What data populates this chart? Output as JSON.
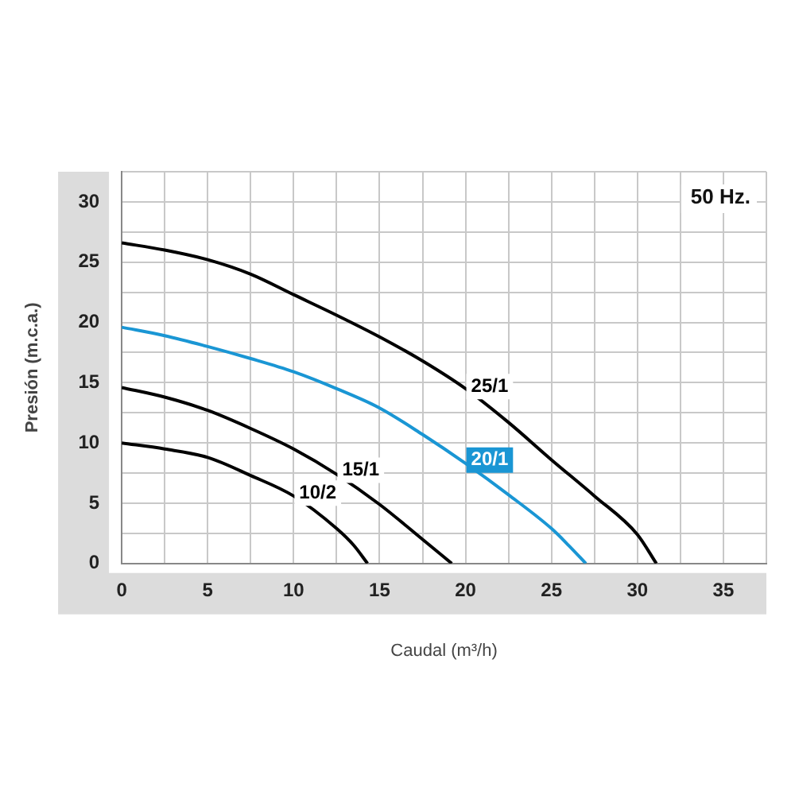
{
  "chart_data": {
    "type": "line",
    "title": "50 Hz.",
    "xlabel": "Caudal (m³/h)",
    "ylabel": "Presión (m.c.a.)",
    "series": [
      {
        "name": "25/1",
        "color": "#000000",
        "x": [
          0,
          2.5,
          5,
          7.5,
          10,
          12.5,
          15,
          17.5,
          20,
          22.5,
          25,
          27.5,
          30,
          31.1
        ],
        "values": [
          26.6,
          26,
          25.2,
          24,
          22.3,
          20.6,
          18.8,
          16.8,
          14.5,
          11.7,
          8.6,
          5.6,
          2.4,
          0
        ]
      },
      {
        "name": "20/1",
        "color": "#1a96d4",
        "x": [
          0,
          2.5,
          5,
          7.5,
          10,
          12.5,
          15,
          17.5,
          20,
          22.5,
          25,
          26,
          27
        ],
        "values": [
          19.6,
          18.9,
          18,
          17,
          15.9,
          14.5,
          12.9,
          10.7,
          8.3,
          5.7,
          2.9,
          1.5,
          0
        ]
      },
      {
        "name": "15/1",
        "color": "#000000",
        "x": [
          0,
          2.5,
          5,
          7.5,
          10,
          12.5,
          15,
          17.5,
          19.2
        ],
        "values": [
          14.6,
          13.8,
          12.7,
          11.2,
          9.5,
          7.4,
          4.9,
          2,
          0
        ]
      },
      {
        "name": "10/2",
        "color": "#000000",
        "x": [
          0,
          2.5,
          5,
          7.5,
          10,
          12.5,
          13.5,
          14.3
        ],
        "values": [
          10,
          9.5,
          8.8,
          7.3,
          5.6,
          2.9,
          1.5,
          0
        ]
      }
    ],
    "xlim": [
      0,
      37.5
    ],
    "ylim": [
      0,
      32.5
    ],
    "xticks": [
      0,
      {
        "value": 2.5,
        "label": null
      },
      5,
      {
        "value": 7.5,
        "label": null
      },
      10,
      {
        "value": 12.5,
        "label": null
      },
      15,
      {
        "value": 17.5,
        "label": null
      },
      20,
      {
        "value": 22.5,
        "label": null
      },
      25,
      {
        "value": 27.5,
        "label": null
      },
      30,
      {
        "value": 32.5,
        "label": null
      },
      35,
      {
        "value": 37.5,
        "label": null
      }
    ],
    "yticks": [
      0,
      {
        "value": 2.5,
        "label": null
      },
      5,
      {
        "value": 7.5,
        "label": null
      },
      10,
      {
        "value": 12.5,
        "label": null
      },
      15,
      {
        "value": 17.5,
        "label": null
      },
      20,
      {
        "value": 22.5,
        "label": null
      },
      25,
      {
        "value": 27.5,
        "label": null
      },
      30,
      {
        "value": 32.5,
        "label": null
      }
    ],
    "grid": true,
    "legend": false,
    "marker": "none",
    "line_style": "solid"
  }
}
